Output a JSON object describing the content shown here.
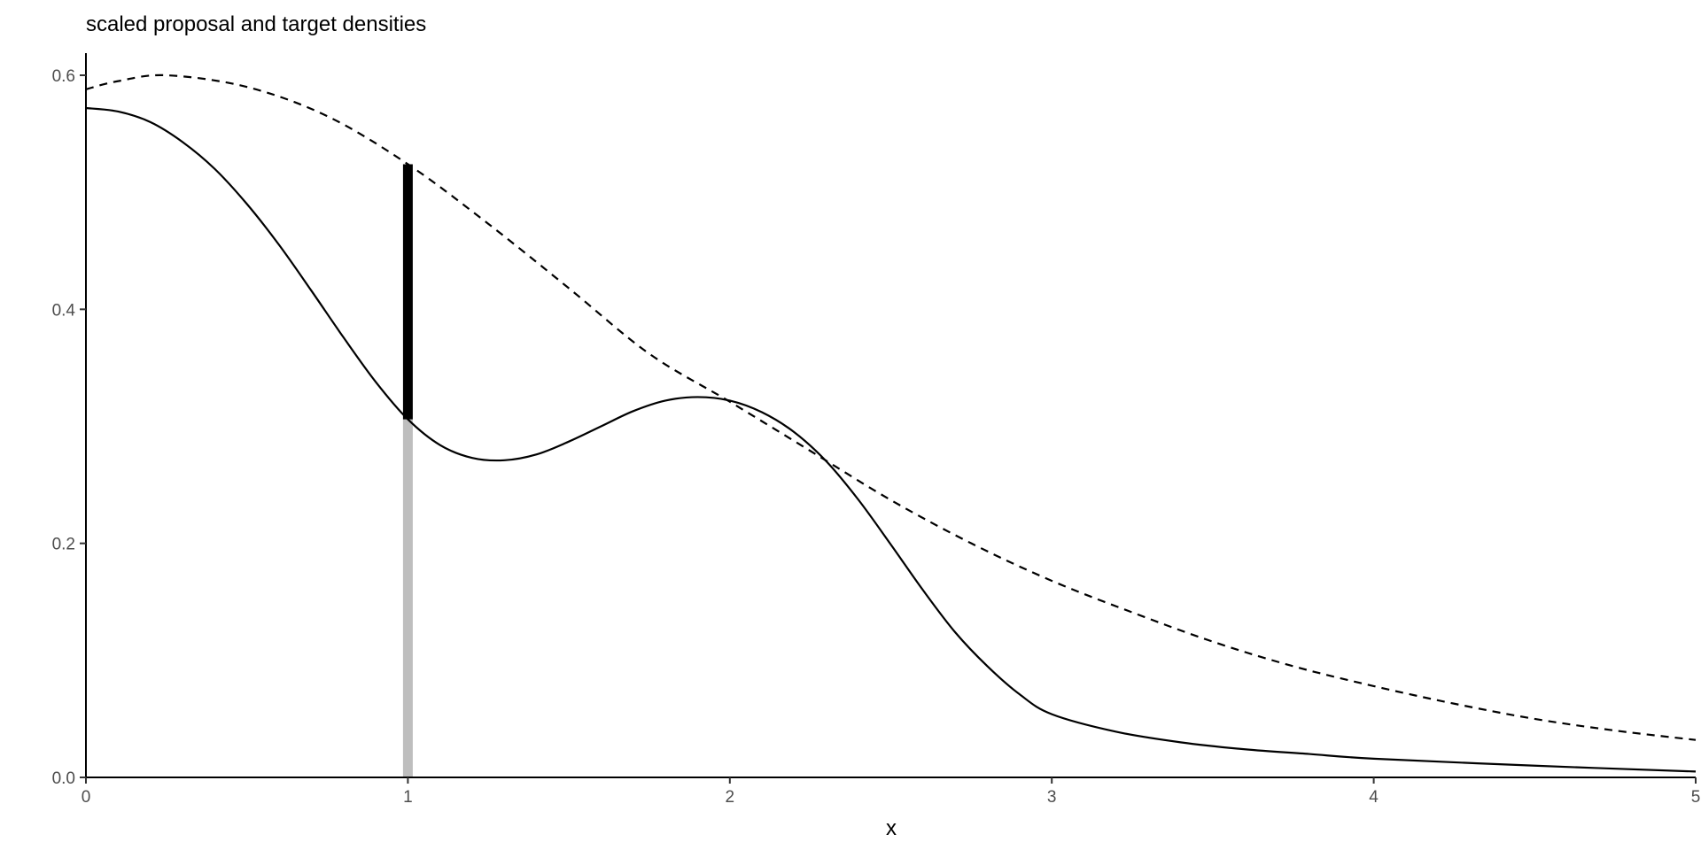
{
  "chart_data": {
    "type": "line",
    "title": "scaled proposal and target densities",
    "xlabel": "x",
    "ylabel": "",
    "xlim": [
      0,
      5
    ],
    "ylim": [
      0,
      0.62
    ],
    "x_ticks": [
      0,
      1,
      2,
      3,
      4,
      5
    ],
    "x_tick_labels": [
      "0",
      "1",
      "2",
      "3",
      "4",
      "5"
    ],
    "y_ticks": [
      0.0,
      0.2,
      0.4,
      0.6
    ],
    "y_tick_labels": [
      "0.0",
      "0.2",
      "0.4",
      "0.6"
    ],
    "grid": false,
    "series": [
      {
        "style": "solid",
        "color": "#000000",
        "points": [
          [
            0.0,
            0.572
          ],
          [
            0.1,
            0.569
          ],
          [
            0.2,
            0.56
          ],
          [
            0.3,
            0.543
          ],
          [
            0.4,
            0.52
          ],
          [
            0.5,
            0.49
          ],
          [
            0.6,
            0.455
          ],
          [
            0.7,
            0.416
          ],
          [
            0.8,
            0.376
          ],
          [
            0.9,
            0.338
          ],
          [
            1.0,
            0.306
          ],
          [
            1.1,
            0.284
          ],
          [
            1.2,
            0.273
          ],
          [
            1.3,
            0.271
          ],
          [
            1.4,
            0.276
          ],
          [
            1.5,
            0.287
          ],
          [
            1.6,
            0.3
          ],
          [
            1.7,
            0.313
          ],
          [
            1.8,
            0.322
          ],
          [
            1.9,
            0.325
          ],
          [
            2.0,
            0.322
          ],
          [
            2.1,
            0.312
          ],
          [
            2.2,
            0.295
          ],
          [
            2.3,
            0.27
          ],
          [
            2.4,
            0.237
          ],
          [
            2.5,
            0.199
          ],
          [
            2.6,
            0.16
          ],
          [
            2.7,
            0.124
          ],
          [
            2.8,
            0.095
          ],
          [
            2.9,
            0.071
          ],
          [
            3.0,
            0.054
          ],
          [
            3.2,
            0.039
          ],
          [
            3.4,
            0.03
          ],
          [
            3.6,
            0.024
          ],
          [
            3.8,
            0.02
          ],
          [
            4.0,
            0.016
          ],
          [
            4.5,
            0.01
          ],
          [
            5.0,
            0.005
          ]
        ]
      },
      {
        "style": "dashed",
        "color": "#000000",
        "points": [
          [
            0.0,
            0.588
          ],
          [
            0.1,
            0.595
          ],
          [
            0.25,
            0.6
          ],
          [
            0.5,
            0.59
          ],
          [
            0.75,
            0.565
          ],
          [
            1.0,
            0.524
          ],
          [
            1.25,
            0.473
          ],
          [
            1.5,
            0.418
          ],
          [
            1.75,
            0.362
          ],
          [
            2.0,
            0.321
          ],
          [
            2.25,
            0.279
          ],
          [
            2.5,
            0.237
          ],
          [
            2.75,
            0.2
          ],
          [
            3.0,
            0.168
          ],
          [
            3.25,
            0.141
          ],
          [
            3.5,
            0.116
          ],
          [
            3.75,
            0.095
          ],
          [
            4.0,
            0.078
          ],
          [
            4.25,
            0.063
          ],
          [
            4.5,
            0.05
          ],
          [
            4.75,
            0.04
          ],
          [
            5.0,
            0.032
          ]
        ]
      }
    ],
    "segments": [
      {
        "x": 1.0,
        "y_from": 0.0,
        "y_to": 0.306,
        "color": "#bebebe"
      },
      {
        "x": 1.0,
        "y_from": 0.306,
        "y_to": 0.524,
        "color": "#000000"
      }
    ]
  }
}
